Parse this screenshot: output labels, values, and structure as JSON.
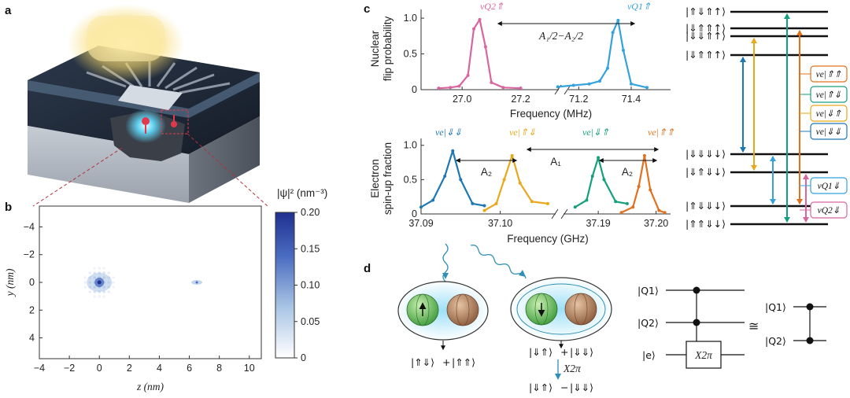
{
  "panels": {
    "a": "a",
    "b": "b",
    "c": "c",
    "d": "d"
  },
  "heatmap": {
    "xlabel": "z (nm)",
    "ylabel": "y (nm)",
    "xticks": [
      "−4",
      "−2",
      "0",
      "2",
      "4",
      "6",
      "8",
      "10"
    ],
    "yticks": [
      "−4",
      "−2",
      "0",
      "2",
      "4"
    ],
    "colorbar_label": "|ψ|² (nm⁻³)",
    "colorbar_ticks": [
      "0",
      "0.05",
      "0.10",
      "0.15",
      "0.20"
    ],
    "colorbar_range": [
      0,
      0.2
    ],
    "colors": {
      "low": "#ffffff",
      "high": "#1f2f8f"
    }
  },
  "nmr": {
    "ylabel_line1": "Nuclear",
    "ylabel_line2": "flip probability",
    "xlabel": "Frequency (MHz)",
    "yticks": [
      "0",
      "0.5",
      "1.0"
    ],
    "xticks": [
      "27.0",
      "27.2",
      "71.2",
      "71.4"
    ],
    "peak_labels": [
      "νQ2⇑",
      "νQ1⇑"
    ],
    "annotation": "A₁/2−A₂/2",
    "ylim": [
      0,
      1.1
    ],
    "colors": {
      "q2": "#d9659f",
      "q1": "#35a2dc"
    }
  },
  "esr": {
    "ylabel_line1": "Electron",
    "ylabel_line2": "spin-up fraction",
    "xlabel": "Frequency (GHz)",
    "yticks": [
      "0",
      "0.5",
      "1.0"
    ],
    "xticks": [
      "37.09",
      "37.10",
      "37.19",
      "37.20"
    ],
    "peak_labels": [
      "νe|⇓⇓",
      "νe|⇑⇓",
      "νe|⇓⇑",
      "νe|⇑⇑"
    ],
    "annotations": [
      "A₂",
      "A₁",
      "A₂"
    ],
    "ylim": [
      0,
      1.1
    ],
    "colors": [
      "#1e78b4",
      "#e8a81a",
      "#15a07d",
      "#e0711f"
    ]
  },
  "levels": {
    "upper": [
      "|⇑⇓⇑↑⟩",
      "|⇓⇑⇑↑⟩",
      "|⇓⇓⇑↑⟩",
      "|⇓⇑⇑↑⟩"
    ],
    "lower": [
      "|⇓⇓⇓↓⟩",
      "|⇓⇑⇓↓⟩",
      "|⇑⇓⇓↓⟩",
      "|⇑⇑⇓↓⟩"
    ],
    "legend": [
      "νe|⇑⇑",
      "νe|⇑⇓",
      "νe|⇓⇑",
      "νe|⇓⇓",
      "νQ1⇓",
      "νQ2⇓"
    ],
    "legend_colors": [
      "#e0711f",
      "#15a07d",
      "#e8a81a",
      "#1e78b4",
      "#35a2dc",
      "#d9659f"
    ]
  },
  "schematic": {
    "left_state": [
      "|⇑⇓⟩",
      "+",
      "|⇑⇑⟩"
    ],
    "right_state_top": [
      "|⇓⇑⟩",
      "+",
      "|⇓⇓⟩"
    ],
    "gate_arrow_label": "X2π",
    "right_state_bottom": [
      "|⇓⇑⟩",
      "−",
      "|⇓⇓⟩"
    ]
  },
  "circuit": {
    "wires": [
      "|Q1⟩",
      "|Q2⟩",
      "|e⟩"
    ],
    "gate": "X2π",
    "equiv": "≅",
    "right_wires": [
      "|Q1⟩",
      "|Q2⟩"
    ]
  },
  "chart_data": [
    {
      "type": "heatmap",
      "title": "",
      "xlabel": "z (nm)",
      "ylabel": "y (nm)",
      "xlim": [
        -4,
        10.8
      ],
      "ylim": [
        -5.5,
        5.5
      ],
      "colorbar_label": "|ψ|² (nm⁻³)",
      "colorbar_range": [
        0,
        0.2
      ],
      "blobs": [
        {
          "z": 0,
          "y": 0,
          "peak": 0.2
        },
        {
          "z": 6.5,
          "y": 0,
          "peak": 0.03
        }
      ]
    },
    {
      "type": "line",
      "xlabel": "Frequency (MHz)",
      "ylabel": "Nuclear flip probability",
      "ylim": [
        0,
        1.1
      ],
      "series": [
        {
          "name": "νQ2⇑",
          "x": [
            26.92,
            26.96,
            26.99,
            27.02,
            27.04,
            27.06,
            27.08,
            27.1,
            27.14,
            27.2
          ],
          "y": [
            0.02,
            0.03,
            0.05,
            0.2,
            0.85,
            0.98,
            0.6,
            0.1,
            0.03,
            0.02
          ]
        },
        {
          "name": "νQ1⇑",
          "x": [
            71.12,
            71.18,
            71.24,
            71.28,
            71.31,
            71.33,
            71.35,
            71.37,
            71.4,
            71.46
          ],
          "y": [
            0.04,
            0.06,
            0.08,
            0.12,
            0.3,
            0.8,
            0.97,
            0.55,
            0.08,
            0.03
          ]
        }
      ]
    },
    {
      "type": "line",
      "xlabel": "Frequency (GHz)",
      "ylabel": "Electron spin-up fraction",
      "ylim": [
        0,
        1.1
      ],
      "series": [
        {
          "name": "νe|⇓⇓",
          "x": [
            37.09,
            37.0915,
            37.093,
            37.094,
            37.095,
            37.0965,
            37.098
          ],
          "y": [
            0.1,
            0.2,
            0.55,
            0.92,
            0.5,
            0.15,
            0.12
          ]
        },
        {
          "name": "νe|⇑⇓",
          "x": [
            37.098,
            37.0995,
            37.1005,
            37.1015,
            37.1025,
            37.104,
            37.106
          ],
          "y": [
            0.05,
            0.15,
            0.5,
            0.85,
            0.45,
            0.18,
            0.15
          ]
        },
        {
          "name": "νe|⇓⇑",
          "x": [
            37.186,
            37.188,
            37.189,
            37.19,
            37.191,
            37.193,
            37.195
          ],
          "y": [
            0.1,
            0.2,
            0.55,
            0.82,
            0.5,
            0.18,
            0.15
          ]
        },
        {
          "name": "νe|⇑⇑",
          "x": [
            37.194,
            37.196,
            37.197,
            37.198,
            37.199,
            37.2005,
            37.2015
          ],
          "y": [
            0.02,
            0.1,
            0.4,
            0.85,
            0.35,
            0.05,
            0.02
          ]
        }
      ]
    }
  ]
}
